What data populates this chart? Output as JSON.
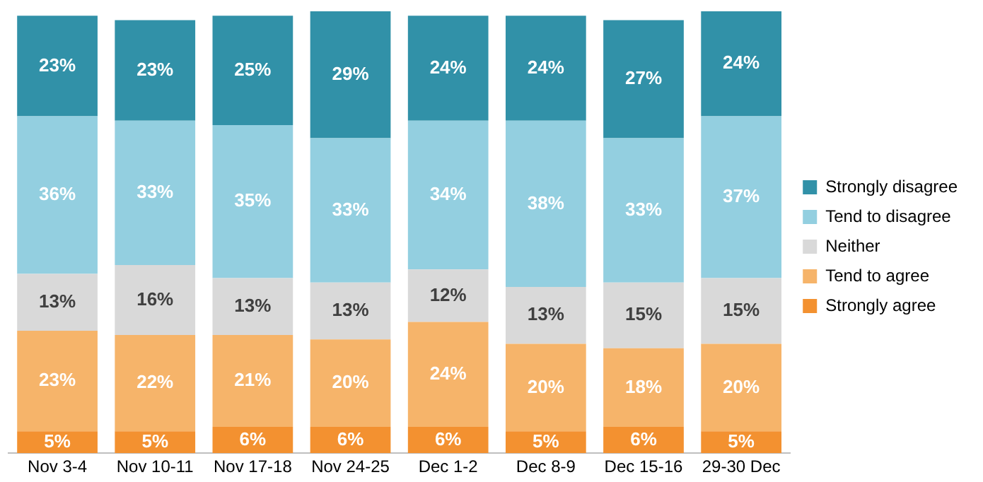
{
  "chart_data": {
    "type": "bar",
    "stacked": true,
    "categories": [
      "Nov 3-4",
      "Nov 10-11",
      "Nov 17-18",
      "Nov 24-25",
      "Dec 1-2",
      "Dec 8-9",
      "Dec 15-16",
      "29-30 Dec"
    ],
    "ylim": [
      0,
      101
    ],
    "series": [
      {
        "name": "Strongly agree",
        "color": "#f39130",
        "values": [
          5,
          5,
          6,
          6,
          6,
          5,
          6,
          5
        ],
        "value_labels": [
          "5%",
          "5%",
          "6%",
          "6%",
          "6%",
          "5%",
          "6%",
          "5%"
        ]
      },
      {
        "name": "Tend to agree",
        "color": "#f6b46a",
        "values": [
          23,
          22,
          21,
          20,
          24,
          20,
          18,
          20
        ],
        "value_labels": [
          "23%",
          "22%",
          "21%",
          "20%",
          "24%",
          "20%",
          "18%",
          "20%"
        ]
      },
      {
        "name": "Neither",
        "color": "#d9d9d9",
        "values": [
          13,
          16,
          13,
          13,
          12,
          13,
          15,
          15
        ],
        "value_labels": [
          "13%",
          "16%",
          "13%",
          "13%",
          "12%",
          "13%",
          "15%",
          "15%"
        ]
      },
      {
        "name": "Tend to disagree",
        "color": "#93cfe0",
        "values": [
          36,
          33,
          35,
          33,
          34,
          38,
          33,
          37
        ],
        "value_labels": [
          "36%",
          "33%",
          "35%",
          "33%",
          "34%",
          "38%",
          "33%",
          "37%"
        ]
      },
      {
        "name": "Strongly disagree",
        "color": "#3191a8",
        "values": [
          23,
          23,
          25,
          29,
          24,
          24,
          27,
          24
        ],
        "value_labels": [
          "23%",
          "23%",
          "25%",
          "29%",
          "24%",
          "24%",
          "27%",
          "24%"
        ]
      }
    ],
    "grid": false,
    "legend": "right"
  }
}
